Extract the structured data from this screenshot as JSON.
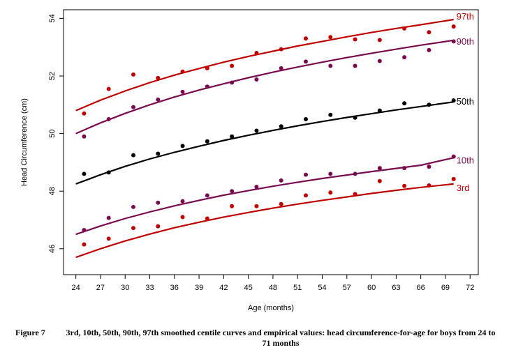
{
  "chart_data": {
    "type": "line",
    "xlabel": "Age (months)",
    "ylabel": "Head Circumference (cm)",
    "xlim": [
      22.5,
      73
    ],
    "ylim": [
      45.1,
      54.3
    ],
    "x_ticks": [
      24,
      27,
      30,
      33,
      36,
      39,
      42,
      45,
      48,
      51,
      54,
      57,
      60,
      63,
      66,
      69,
      72
    ],
    "y_ticks": [
      46,
      48,
      50,
      52,
      54
    ],
    "grid": false,
    "legend": "none",
    "series": [
      {
        "name": "97th",
        "color": "#c00000",
        "curve_x": [
          24,
          27,
          30,
          33,
          36,
          39,
          42,
          45,
          48,
          51,
          54,
          57,
          60,
          63,
          66,
          70
        ],
        "curve_y": [
          50.8,
          51.16,
          51.48,
          51.77,
          52.03,
          52.26,
          52.48,
          52.68,
          52.86,
          53.04,
          53.2,
          53.36,
          53.51,
          53.65,
          53.78,
          53.96
        ],
        "points_x": [
          25,
          28,
          31,
          34,
          37,
          40,
          43,
          46,
          49,
          52,
          55,
          58,
          61,
          64,
          67,
          70
        ],
        "points_y": [
          50.7,
          51.55,
          52.05,
          51.93,
          52.15,
          52.27,
          52.35,
          52.8,
          52.93,
          53.3,
          53.35,
          53.27,
          53.25,
          53.65,
          53.52,
          53.72
        ]
      },
      {
        "name": "90th",
        "color": "#7a0a4e",
        "curve_x": [
          24,
          27,
          30,
          33,
          36,
          39,
          42,
          45,
          48,
          51,
          54,
          57,
          60,
          63,
          66,
          70
        ],
        "curve_y": [
          50.0,
          50.37,
          50.7,
          51.0,
          51.27,
          51.51,
          51.73,
          51.94,
          52.13,
          52.31,
          52.48,
          52.64,
          52.79,
          52.93,
          53.07,
          53.24
        ],
        "points_x": [
          25,
          28,
          31,
          34,
          37,
          40,
          43,
          46,
          49,
          52,
          55,
          58,
          61,
          64,
          67,
          70
        ],
        "points_y": [
          49.9,
          50.5,
          50.92,
          51.18,
          51.45,
          51.63,
          51.77,
          51.88,
          52.27,
          52.5,
          52.35,
          52.35,
          52.52,
          52.65,
          52.9,
          53.2
        ]
      },
      {
        "name": "50th",
        "color": "#000000",
        "curve_x": [
          24,
          27,
          30,
          33,
          36,
          39,
          42,
          45,
          48,
          51,
          54,
          57,
          60,
          63,
          66,
          70
        ],
        "curve_y": [
          48.25,
          48.57,
          48.86,
          49.12,
          49.35,
          49.56,
          49.76,
          49.94,
          50.11,
          50.27,
          50.42,
          50.56,
          50.69,
          50.82,
          50.94,
          51.1
        ],
        "points_x": [
          25,
          28,
          31,
          34,
          37,
          40,
          43,
          46,
          49,
          52,
          55,
          58,
          61,
          64,
          67,
          70
        ],
        "points_y": [
          48.6,
          48.65,
          49.25,
          49.3,
          49.57,
          49.73,
          49.9,
          50.1,
          50.25,
          50.5,
          50.65,
          50.55,
          50.8,
          51.05,
          51.0,
          51.15
        ]
      },
      {
        "name": "10th",
        "color": "#7a0a4e",
        "curve_x": [
          24,
          27,
          30,
          33,
          36,
          39,
          42,
          45,
          48,
          51,
          54,
          57,
          60,
          63,
          66,
          70
        ],
        "curve_y": [
          46.5,
          46.79,
          47.05,
          47.28,
          47.49,
          47.68,
          47.86,
          48.02,
          48.17,
          48.31,
          48.44,
          48.56,
          48.68,
          48.79,
          48.9,
          49.16
        ],
        "points_x": [
          25,
          28,
          31,
          34,
          37,
          40,
          43,
          46,
          49,
          52,
          55,
          58,
          61,
          64,
          67,
          70
        ],
        "points_y": [
          46.65,
          47.07,
          47.45,
          47.6,
          47.65,
          47.85,
          48.0,
          48.15,
          48.37,
          48.57,
          48.6,
          48.6,
          48.8,
          48.8,
          48.85,
          49.2
        ]
      },
      {
        "name": "3rd",
        "color": "#c00000",
        "curve_x": [
          24,
          27,
          30,
          33,
          36,
          39,
          42,
          45,
          48,
          51,
          54,
          57,
          60,
          63,
          66,
          70
        ],
        "curve_y": [
          45.7,
          46.0,
          46.27,
          46.51,
          46.73,
          46.92,
          47.1,
          47.26,
          47.41,
          47.55,
          47.68,
          47.8,
          47.92,
          48.03,
          48.13,
          48.25
        ],
        "points_x": [
          25,
          28,
          31,
          34,
          37,
          40,
          43,
          46,
          49,
          52,
          55,
          58,
          61,
          64,
          67,
          70
        ],
        "points_y": [
          46.15,
          46.35,
          46.72,
          46.78,
          47.1,
          47.05,
          47.48,
          47.48,
          47.55,
          47.85,
          47.95,
          47.9,
          48.35,
          48.18,
          48.2,
          48.42
        ]
      }
    ]
  },
  "caption": {
    "figure_number": "Figure 7",
    "text": "3rd, 10th, 50th, 90th, 97th smoothed centile curves and empirical values: head circumference-for-age for boys from 24 to 71 months"
  }
}
